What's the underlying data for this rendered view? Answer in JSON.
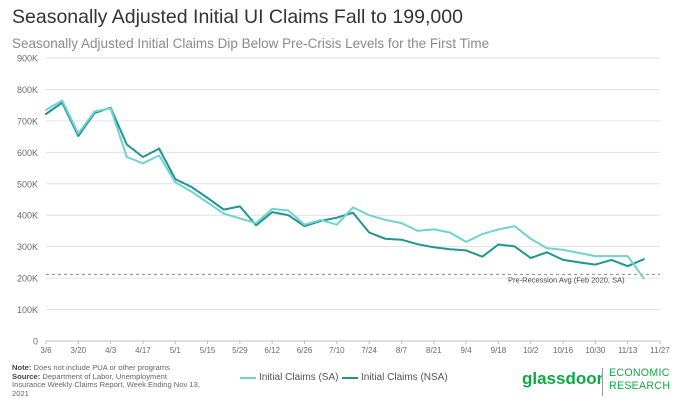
{
  "header": {
    "title": "Seasonally Adjusted Initial UI Claims Fall to 199,000",
    "subtitle": "Seasonally Adjusted Initial Claims Dip Below Pre-Crisis Levels for the First Time"
  },
  "footer": {
    "note_label": "Note:",
    "note_text": "Does not include PUA or other programs",
    "source_label": "Source:",
    "source_text": "Department of Labor, Unemployment Insurance Weekly Claims Report, Week Ending Nov 13, 2021"
  },
  "brand": {
    "name": "glassdoor",
    "division_line1": "ECONOMIC",
    "division_line2": "RESEARCH",
    "color": "#0caa41"
  },
  "chart_data": {
    "type": "line",
    "title": "Seasonally Adjusted Initial UI Claims Fall to 199,000",
    "xlabel": "",
    "ylabel": "",
    "ylim": [
      0,
      900000
    ],
    "yticks": [
      {
        "value": 0,
        "label": "0"
      },
      {
        "value": 100000,
        "label": "100K"
      },
      {
        "value": 200000,
        "label": "200K"
      },
      {
        "value": 300000,
        "label": "300K"
      },
      {
        "value": 400000,
        "label": "400K"
      },
      {
        "value": 500000,
        "label": "500K"
      },
      {
        "value": 600000,
        "label": "600K"
      },
      {
        "value": 700000,
        "label": "700K"
      },
      {
        "value": 800000,
        "label": "800K"
      },
      {
        "value": 900000,
        "label": "900K"
      }
    ],
    "x_week_range": [
      0,
      38
    ],
    "xticks": [
      {
        "week": 0,
        "label": "3/6"
      },
      {
        "week": 2,
        "label": "3/20"
      },
      {
        "week": 4,
        "label": "4/3"
      },
      {
        "week": 6,
        "label": "4/17"
      },
      {
        "week": 8,
        "label": "5/1"
      },
      {
        "week": 10,
        "label": "5/15"
      },
      {
        "week": 12,
        "label": "5/29"
      },
      {
        "week": 14,
        "label": "6/12"
      },
      {
        "week": 16,
        "label": "6/26"
      },
      {
        "week": 18,
        "label": "7/10"
      },
      {
        "week": 20,
        "label": "7/24"
      },
      {
        "week": 22,
        "label": "8/7"
      },
      {
        "week": 24,
        "label": "8/21"
      },
      {
        "week": 26,
        "label": "9/4"
      },
      {
        "week": 28,
        "label": "9/18"
      },
      {
        "week": 30,
        "label": "10/2"
      },
      {
        "week": 32,
        "label": "10/16"
      },
      {
        "week": 34,
        "label": "10/30"
      },
      {
        "week": 36,
        "label": "11/13"
      },
      {
        "week": 38,
        "label": "11/27"
      }
    ],
    "grid": true,
    "legend_position": "bottom",
    "series": [
      {
        "name": "Initial Claims (SA)",
        "color": "#6fd3d0",
        "values": [
          735000,
          765000,
          660000,
          730000,
          740000,
          585000,
          565000,
          590000,
          505000,
          475000,
          440000,
          405000,
          390000,
          375000,
          420000,
          415000,
          370000,
          385000,
          370000,
          425000,
          400000,
          385000,
          375000,
          350000,
          355000,
          345000,
          315000,
          340000,
          355000,
          365000,
          325000,
          295000,
          290000,
          280000,
          270000,
          270000,
          270000,
          199000
        ]
      },
      {
        "name": "Initial Claims (NSA)",
        "color": "#1e9690",
        "values": [
          722000,
          758000,
          652000,
          725000,
          742000,
          625000,
          585000,
          612000,
          515000,
          490000,
          455000,
          418000,
          428000,
          368000,
          410000,
          400000,
          365000,
          382000,
          392000,
          408000,
          345000,
          325000,
          322000,
          308000,
          298000,
          292000,
          288000,
          268000,
          307000,
          301000,
          264000,
          282000,
          258000,
          250000,
          243000,
          258000,
          238000,
          260000
        ]
      }
    ],
    "reference_line": {
      "value": 212000,
      "label": "Pre-Recession Avg (Feb 2020, SA)"
    }
  }
}
